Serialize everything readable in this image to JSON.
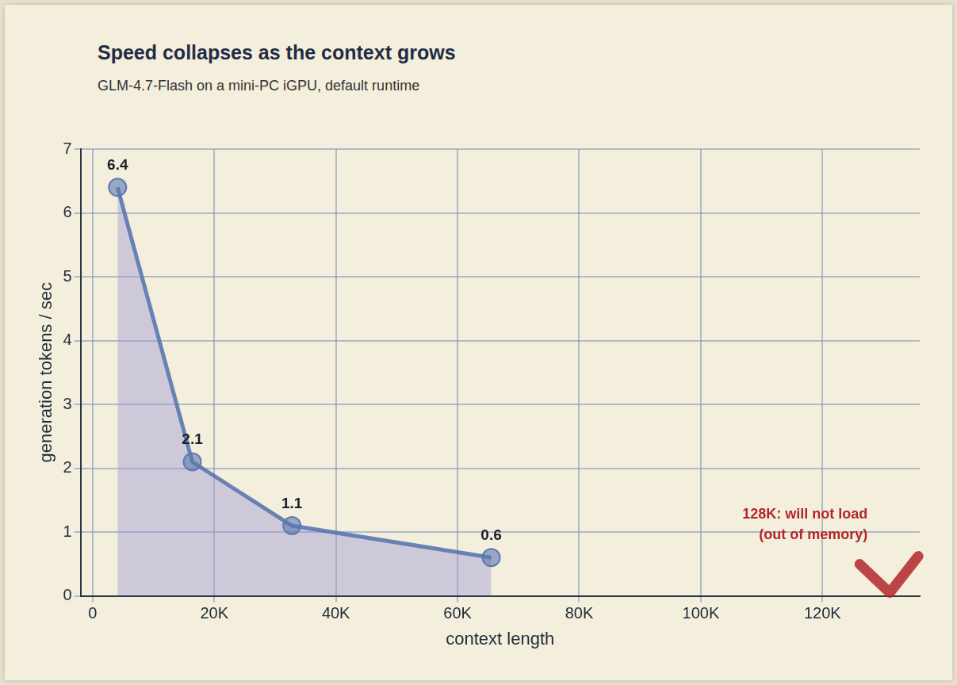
{
  "chart_data": {
    "type": "line",
    "title": "Speed collapses as the context grows",
    "subtitle": "GLM-4.7-Flash on a mini-PC iGPU, default runtime",
    "x_label": "context length",
    "y_label": "generation tokens / sec",
    "x": [
      4096,
      16384,
      32768,
      65536
    ],
    "values": [
      6.4,
      2.1,
      1.1,
      0.6
    ],
    "color": "#5a78b0",
    "marker": "circle",
    "xlim": [
      -2000,
      136000
    ],
    "xticks": [
      0,
      {
        "value": 20000,
        "label": "20K"
      },
      {
        "value": 40000,
        "label": "40K"
      },
      {
        "value": 60000,
        "label": "60K"
      },
      {
        "value": 80000,
        "label": "80K"
      },
      {
        "value": 100000,
        "label": "100K"
      },
      {
        "value": 120000,
        "label": "120K"
      }
    ],
    "ylim": [
      0,
      7
    ],
    "yticks": [
      0,
      1,
      2,
      3,
      4,
      5,
      6,
      7
    ],
    "grid": true,
    "data_labels": true,
    "annotations": [
      {
        "x": 131072,
        "y": 0,
        "text": [
          "128K: will not load",
          "(out of memory)"
        ],
        "color": "#b3262a"
      }
    ]
  }
}
